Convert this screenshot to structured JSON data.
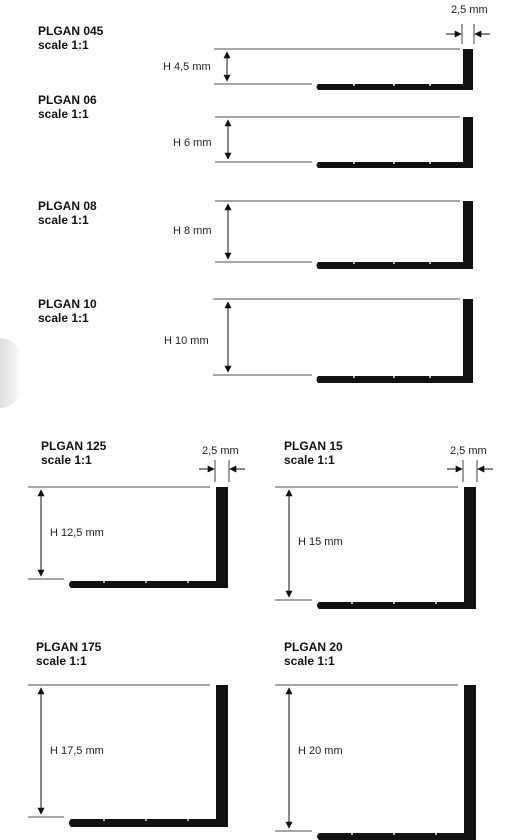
{
  "profiles": [
    {
      "id": "p045",
      "name": "PLGAN 045",
      "scale": "scale 1:1",
      "height_label": "H 4,5 mm",
      "width_label": "2,5 mm"
    },
    {
      "id": "p06",
      "name": "PLGAN 06",
      "scale": "scale 1:1",
      "height_label": "H 6 mm"
    },
    {
      "id": "p08",
      "name": "PLGAN 08",
      "scale": "scale 1:1",
      "height_label": "H 8 mm"
    },
    {
      "id": "p10",
      "name": "PLGAN 10",
      "scale": "scale 1:1",
      "height_label": "H 10 mm"
    },
    {
      "id": "p125",
      "name": "PLGAN 125",
      "scale": "scale 1:1",
      "height_label": "H 12,5 mm",
      "width_label": "2,5 mm"
    },
    {
      "id": "p15",
      "name": "PLGAN 15",
      "scale": "scale 1:1",
      "height_label": "H 15 mm",
      "width_label": "2,5 mm"
    },
    {
      "id": "p175",
      "name": "PLGAN 175",
      "scale": "scale 1:1",
      "height_label": "H 17,5 mm"
    },
    {
      "id": "p20",
      "name": "PLGAN 20",
      "scale": "scale 1:1",
      "height_label": "H 20 mm"
    }
  ]
}
